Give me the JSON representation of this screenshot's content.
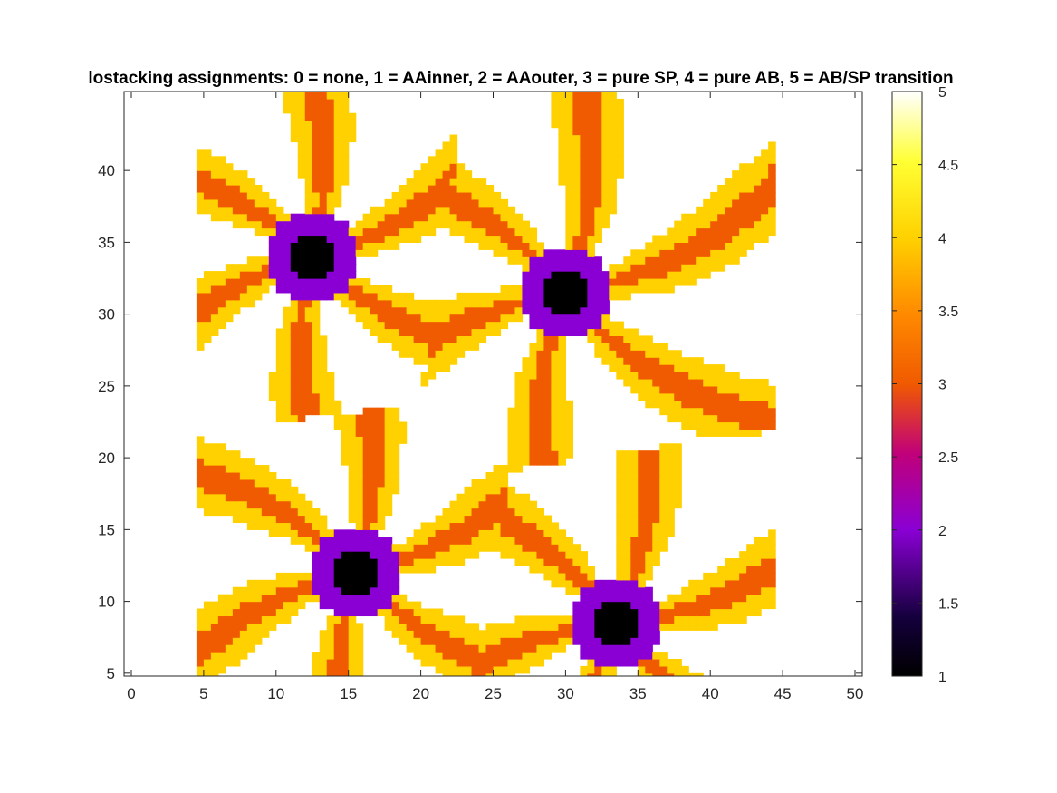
{
  "chart_data": {
    "type": "heatmap",
    "title": "lostacking assignments: 0 = none, 1 = AAinner, 2 = AAouter, 3 = pure SP, 4 = pure AB, 5 = AB/SP transition",
    "xlabel": "",
    "ylabel": "",
    "xlim": [
      -0.5,
      50.5
    ],
    "ylim": [
      4.8,
      45.5
    ],
    "x_ticks": [
      0,
      5,
      10,
      15,
      20,
      25,
      30,
      35,
      40,
      45,
      50
    ],
    "y_ticks": [
      5,
      10,
      15,
      20,
      25,
      30,
      35,
      40
    ],
    "colormap": "hot",
    "clim": [
      1,
      5
    ],
    "colorbar_ticks": [
      1,
      1.5,
      2,
      2.5,
      3,
      3.5,
      4,
      4.5,
      5
    ],
    "data_extent": {
      "x": [
        4.5,
        44.5
      ],
      "y": [
        4.5,
        45.5
      ]
    },
    "level_colors": {
      "1": "#000000",
      "2": "#8a00d4",
      "3": "#f05a00",
      "4": "#ffd100",
      "5": "#ffffff"
    },
    "centers": [
      {
        "x": 12.5,
        "y": 34.0,
        "rotation_deg": 15
      },
      {
        "x": 30.0,
        "y": 31.5,
        "rotation_deg": 8
      },
      {
        "x": 15.5,
        "y": 12.0,
        "rotation_deg": 12
      },
      {
        "x": 33.5,
        "y": 8.5,
        "rotation_deg": 5
      }
    ],
    "core_radius": 1.7,
    "ring_radius": 3.2,
    "arms_per_center": 6
  }
}
